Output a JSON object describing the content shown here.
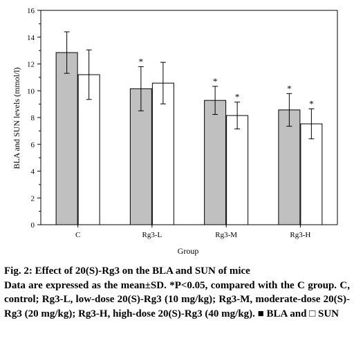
{
  "chart_data": {
    "type": "bar",
    "categories": [
      "C",
      "Rg3-L",
      "Rg3-M",
      "Rg3-H"
    ],
    "xlabel": "Group",
    "ylabel": "BLA and SUN  levels (mmol/l)",
    "ylim": [
      0,
      16
    ],
    "yticks": [
      0,
      2,
      4,
      6,
      8,
      10,
      12,
      14,
      16
    ],
    "grid": false,
    "series": [
      {
        "name": "BLA",
        "color": "#c0c0c0",
        "values": [
          12.85,
          10.15,
          9.28,
          8.57
        ],
        "errors": [
          1.55,
          1.65,
          1.05,
          1.22
        ],
        "significance": [
          "",
          "*",
          "*",
          "*"
        ]
      },
      {
        "name": "SUN",
        "color": "#ffffff",
        "values": [
          11.2,
          10.57,
          8.15,
          7.53
        ],
        "errors": [
          1.85,
          1.55,
          1.0,
          1.12
        ],
        "significance": [
          "",
          "",
          "*",
          "*"
        ]
      }
    ]
  },
  "caption": {
    "title": "Fig. 2: Effect of 20(S)-Rg3 on the BLA and SUN of mice",
    "body": "Data are expressed as the mean±SD. *P<0.05, compared with the C group. C, control; Rg3-L, low-dose 20(S)-Rg3 (10 mg/kg); Rg3-M, moderate-dose 20(S)-Rg3 (20 mg/kg); Rg3-H, high-dose 20(S)-Rg3 (40 mg/kg).",
    "legend_bla_symbol": "■",
    "legend_bla": "BLA and",
    "legend_sun_symbol": "□",
    "legend_sun": "SUN"
  }
}
